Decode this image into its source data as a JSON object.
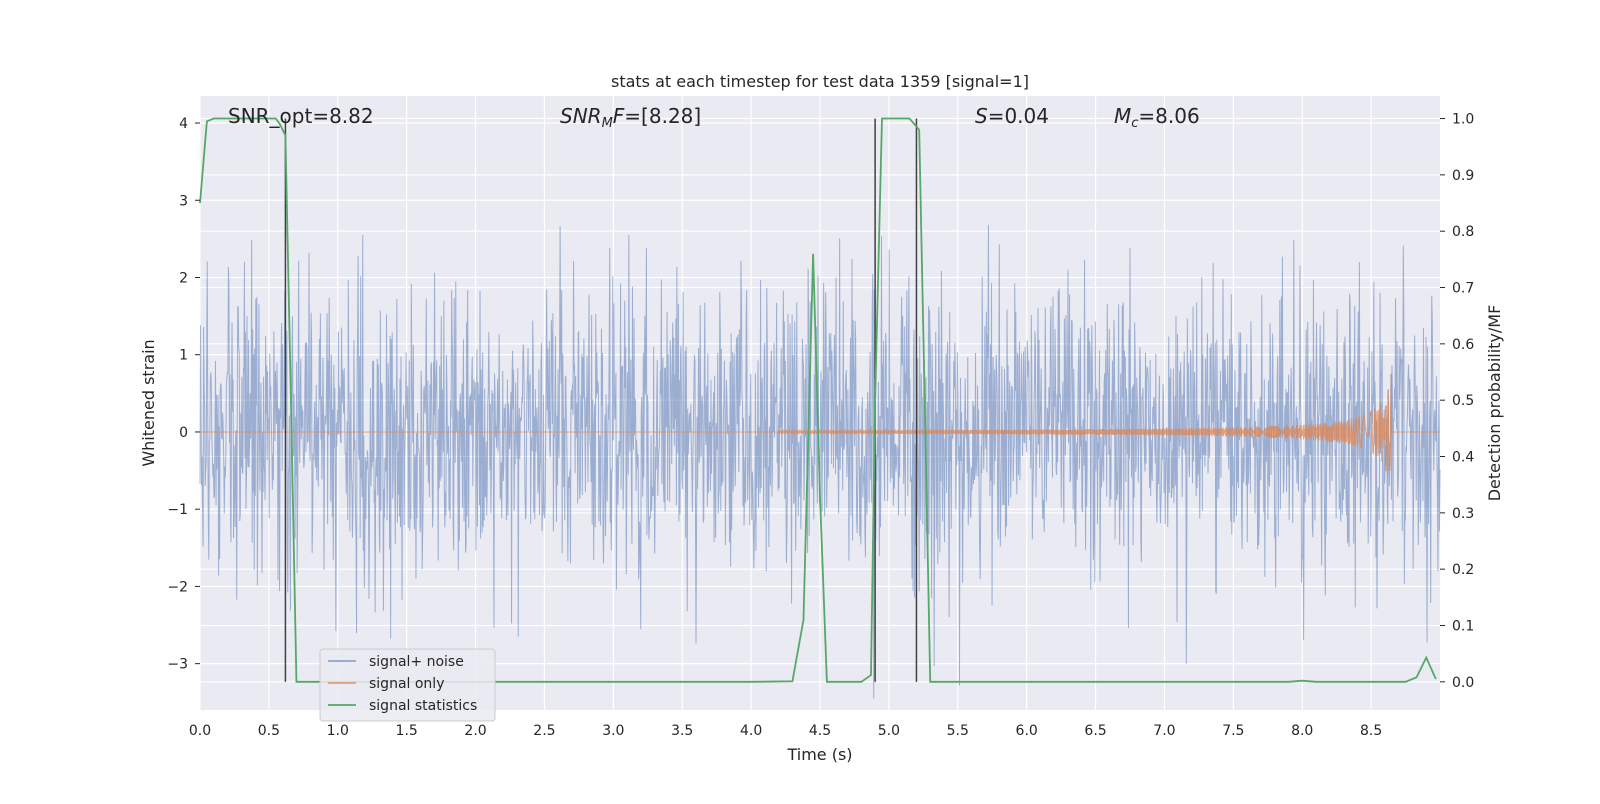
{
  "chart_data": {
    "type": "line",
    "title": "stats at each timestep for test data 1359 [signal=1]",
    "xlabel": "Time (s)",
    "ylabel_left": "Whitened strain",
    "ylabel_right": "Detection probability/MF",
    "xlim": [
      0.0,
      9.0
    ],
    "ylim_left": [
      -3.6,
      4.35
    ],
    "ylim_right": [
      -0.05,
      1.04
    ],
    "x_ticks": [
      "0.0",
      "0.5",
      "1.0",
      "1.5",
      "2.0",
      "2.5",
      "3.0",
      "3.5",
      "4.0",
      "4.5",
      "5.0",
      "5.5",
      "6.0",
      "6.5",
      "7.0",
      "7.5",
      "8.0",
      "8.5"
    ],
    "y_ticks_left": [
      "4",
      "3",
      "2",
      "1",
      "0",
      "−1",
      "−2",
      "−3"
    ],
    "y_ticks_right": [
      "1.0",
      "0.9",
      "0.8",
      "0.7",
      "0.6",
      "0.5",
      "0.4",
      "0.3",
      "0.2",
      "0.1",
      "0.0"
    ],
    "grid": true,
    "legend_position": "lower-left",
    "colors": {
      "background": "#EAEAF2",
      "grid": "#FFFFFF",
      "noise": "#4C72B0",
      "signal": "#DD8452",
      "statistics": "#55A868",
      "vline": "#404040"
    },
    "annotations": [
      {
        "text": "SNR_opt=8.82",
        "x_data": 0.2
      },
      {
        "text": "SNR_MF=[8.28]",
        "x_data": 2.6
      },
      {
        "text": "S=0.04",
        "x_data": 5.6
      },
      {
        "text": "M_c=8.06",
        "x_data": 6.6
      }
    ],
    "vertical_lines_x": [
      0.62,
      4.9,
      5.2
    ],
    "series": [
      {
        "name": "signal+ noise",
        "kind": "noise",
        "axis": "left",
        "typical_std": 0.95,
        "min": -3.45,
        "max": 4.0
      },
      {
        "name": "signal only",
        "kind": "chirp",
        "axis": "left",
        "start": 4.2,
        "end": 8.65,
        "peak_amplitude": 0.8
      },
      {
        "name": "signal statistics",
        "axis": "right",
        "x": [
          0.0,
          0.05,
          0.1,
          0.15,
          0.2,
          0.3,
          0.4,
          0.5,
          0.55,
          0.58,
          0.62,
          0.66,
          0.7,
          1.0,
          2.0,
          3.0,
          4.0,
          4.3,
          4.38,
          4.45,
          4.5,
          4.55,
          4.6,
          4.8,
          4.87,
          4.9,
          4.95,
          5.0,
          5.15,
          5.22,
          5.26,
          5.3,
          5.5,
          6.0,
          7.0,
          7.5,
          7.9,
          8.0,
          8.1,
          8.5,
          8.75,
          8.83,
          8.9,
          8.97
        ],
        "values": [
          0.85,
          0.995,
          1.0,
          1.0,
          1.0,
          1.0,
          1.0,
          1.0,
          1.0,
          0.99,
          0.97,
          0.5,
          0.0,
          0.0,
          0.0,
          0.0,
          0.0,
          0.001,
          0.11,
          0.76,
          0.33,
          0.0,
          0.0,
          0.0,
          0.012,
          0.5,
          1.0,
          1.0,
          1.0,
          0.98,
          0.5,
          0.0,
          0.0,
          0.0,
          0.0,
          0.0,
          0.0,
          0.002,
          0.0,
          0.0,
          0.0,
          0.008,
          0.043,
          0.005
        ]
      }
    ]
  }
}
